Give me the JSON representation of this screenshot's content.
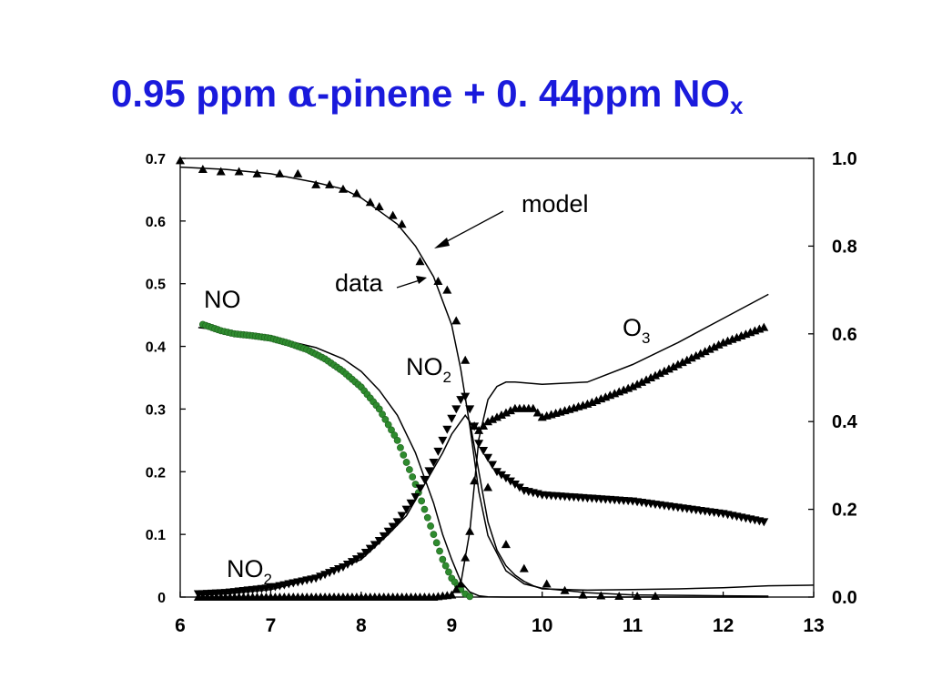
{
  "title": {
    "prefix": "0.95 ppm ",
    "symbol": "α",
    "middle": "-pinene + 0. 44ppm NO",
    "subscript": "x"
  },
  "chart_data": {
    "type": "scatter",
    "xlim": [
      6,
      13
    ],
    "ylim_left": [
      0,
      0.7
    ],
    "ylim_right": [
      0,
      1.0
    ],
    "x_ticks": [
      "6",
      "7",
      "8",
      "9",
      "10",
      "11",
      "12",
      "13"
    ],
    "y_ticks_left": [
      "0",
      "0.1",
      "0.2",
      "0.3",
      "0.4",
      "0.5",
      "0.6",
      "0.7"
    ],
    "y_ticks_right": [
      "0.0",
      "0.2",
      "0.4",
      "0.6",
      "0.8",
      "1.0"
    ],
    "grid": false,
    "legend": "none",
    "colors": {
      "no_data": "#2e8b2e",
      "markers": "#000000",
      "model": "#000000",
      "title": "#1a1adc"
    },
    "annotations": {
      "model": "model",
      "data": "data",
      "no": "NO",
      "no2_top": "NO",
      "no2_top_sub": "2",
      "no2_bottom": "NO",
      "no2_bottom_sub": "2",
      "o3": "O",
      "o3_sub": "3"
    },
    "series": [
      {
        "name": "NO",
        "axis": "left",
        "marker": "circle",
        "color": "#2e8b2e",
        "x": [
          6.25,
          6.35,
          6.45,
          6.6,
          6.8,
          7.0,
          7.2,
          7.4,
          7.6,
          7.8,
          8.0,
          8.2,
          8.4,
          8.5,
          8.6,
          8.7,
          8.8,
          8.9,
          9.0,
          9.1,
          9.15,
          9.2
        ],
        "y": [
          0.435,
          0.43,
          0.425,
          0.42,
          0.417,
          0.413,
          0.405,
          0.395,
          0.38,
          0.36,
          0.335,
          0.3,
          0.25,
          0.215,
          0.18,
          0.14,
          0.1,
          0.06,
          0.03,
          0.012,
          0.005,
          0.001
        ]
      },
      {
        "name": "NO2",
        "axis": "left",
        "marker": "triangle-down",
        "color": "#000000",
        "x": [
          6.2,
          6.5,
          7.0,
          7.5,
          7.8,
          8.0,
          8.2,
          8.4,
          8.6,
          8.8,
          8.9,
          9.0,
          9.1,
          9.15,
          9.2,
          9.3,
          9.5,
          9.8,
          10.0,
          10.5,
          11.0,
          11.5,
          12.0,
          12.45
        ],
        "y": [
          0.005,
          0.007,
          0.015,
          0.03,
          0.048,
          0.065,
          0.09,
          0.12,
          0.16,
          0.215,
          0.25,
          0.285,
          0.315,
          0.32,
          0.3,
          0.245,
          0.2,
          0.17,
          0.163,
          0.158,
          0.153,
          0.143,
          0.133,
          0.12
        ]
      },
      {
        "name": "α-pinene",
        "axis": "right",
        "marker": "triangle-up",
        "color": "#000000",
        "x": [
          6.0,
          6.25,
          6.45,
          6.65,
          6.85,
          7.1,
          7.3,
          7.5,
          7.65,
          7.8,
          7.95,
          8.1,
          8.2,
          8.35,
          8.45,
          8.65,
          8.85,
          8.95,
          9.05,
          9.15,
          9.25,
          9.4,
          9.6,
          9.8,
          10.05,
          10.25,
          10.45,
          10.65,
          10.85,
          11.05,
          11.25
        ],
        "y": [
          0.995,
          0.975,
          0.97,
          0.97,
          0.965,
          0.965,
          0.965,
          0.94,
          0.94,
          0.93,
          0.92,
          0.9,
          0.89,
          0.87,
          0.85,
          0.765,
          0.72,
          0.7,
          0.63,
          0.54,
          0.39,
          0.25,
          0.12,
          0.065,
          0.03,
          0.015,
          0.005,
          0.003,
          0.002,
          0.002,
          0.002
        ]
      },
      {
        "name": "O3",
        "axis": "right",
        "marker": "triangle-up",
        "color": "#000000",
        "x": [
          6.2,
          7.0,
          8.0,
          8.8,
          9.0,
          9.1,
          9.2,
          9.3,
          9.4,
          9.5,
          9.7,
          9.9,
          10.0,
          10.5,
          11.0,
          11.5,
          12.0,
          12.45
        ],
        "y": [
          0.0,
          0.0,
          0.0,
          0.0,
          0.005,
          0.03,
          0.15,
          0.38,
          0.4,
          0.41,
          0.43,
          0.43,
          0.41,
          0.44,
          0.48,
          0.53,
          0.58,
          0.615
        ]
      },
      {
        "name": "NO2 model",
        "axis": "left",
        "marker": "line",
        "color": "#000000",
        "x": [
          6.2,
          6.5,
          7.0,
          7.5,
          8.0,
          8.3,
          8.5,
          8.7,
          8.9,
          9.0,
          9.1,
          9.15,
          9.2,
          9.3,
          9.4,
          9.5,
          9.6,
          9.7,
          9.8,
          9.9,
          10.0,
          10.5,
          11.0,
          11.5,
          12.0,
          12.5,
          13.0
        ],
        "y": [
          0.003,
          0.005,
          0.012,
          0.03,
          0.06,
          0.1,
          0.13,
          0.18,
          0.23,
          0.26,
          0.28,
          0.29,
          0.28,
          0.2,
          0.12,
          0.075,
          0.05,
          0.035,
          0.025,
          0.018,
          0.013,
          0.011,
          0.012,
          0.013,
          0.015,
          0.018,
          0.019
        ]
      },
      {
        "name": "NO model",
        "axis": "left",
        "marker": "line",
        "color": "#000000",
        "x": [
          6.2,
          6.5,
          7.0,
          7.5,
          7.8,
          8.0,
          8.2,
          8.4,
          8.6,
          8.8,
          8.9,
          9.0,
          9.1,
          9.2,
          9.3,
          9.4,
          9.6,
          10.0,
          11.0,
          12.0,
          12.5
        ],
        "y": [
          0.43,
          0.425,
          0.415,
          0.398,
          0.38,
          0.36,
          0.33,
          0.29,
          0.23,
          0.15,
          0.1,
          0.06,
          0.025,
          0.008,
          0.002,
          0.0005,
          0.0,
          0.0,
          0.0,
          0.0,
          0.0
        ]
      },
      {
        "name": "α-pinene model",
        "axis": "right",
        "marker": "line",
        "color": "#000000",
        "x": [
          6.0,
          6.5,
          7.0,
          7.5,
          7.8,
          8.0,
          8.2,
          8.4,
          8.6,
          8.8,
          9.0,
          9.1,
          9.2,
          9.3,
          9.4,
          9.6,
          9.8,
          10.0,
          10.5,
          11.0,
          12.0,
          12.5
        ],
        "y": [
          0.98,
          0.975,
          0.965,
          0.945,
          0.93,
          0.91,
          0.88,
          0.85,
          0.8,
          0.73,
          0.62,
          0.52,
          0.39,
          0.24,
          0.14,
          0.06,
          0.03,
          0.02,
          0.01,
          0.005,
          0.003,
          0.002
        ]
      },
      {
        "name": "O3 model",
        "axis": "right",
        "marker": "line",
        "color": "#000000",
        "x": [
          6.2,
          7.0,
          8.0,
          8.8,
          9.0,
          9.1,
          9.2,
          9.3,
          9.4,
          9.5,
          9.6,
          9.7,
          10.0,
          10.5,
          11.0,
          11.5,
          12.0,
          12.5
        ],
        "y": [
          0.0,
          0.0,
          0.0,
          0.0,
          0.005,
          0.03,
          0.15,
          0.36,
          0.45,
          0.48,
          0.49,
          0.49,
          0.485,
          0.49,
          0.53,
          0.58,
          0.635,
          0.69
        ]
      }
    ]
  }
}
